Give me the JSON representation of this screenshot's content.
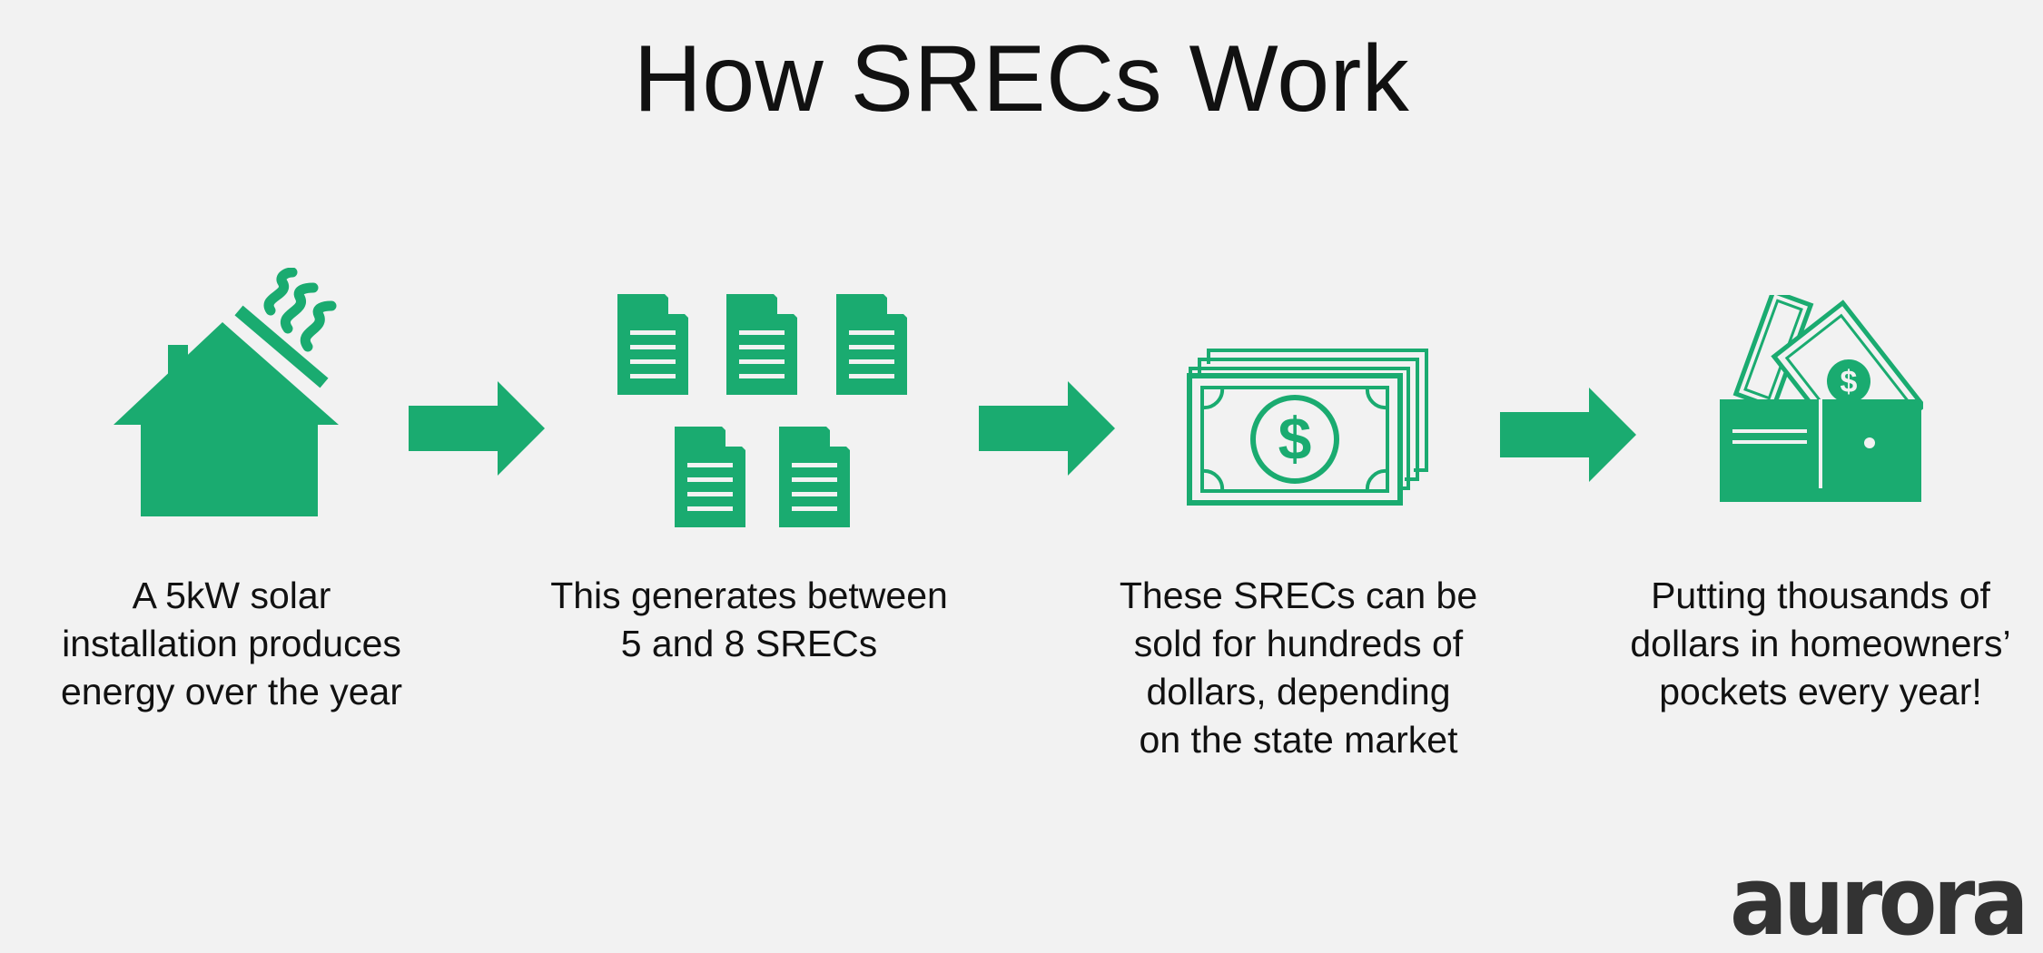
{
  "title": "How SRECs Work",
  "accent_color": "#1aab70",
  "logo_color": "#333333",
  "steps": [
    {
      "icon": "solar-house-icon",
      "lines": [
        "A 5kW solar",
        "installation produces",
        "energy over the year"
      ]
    },
    {
      "icon": "documents-icon",
      "lines": [
        "This generates between",
        "5 and 8 SRECs"
      ]
    },
    {
      "icon": "money-stack-icon",
      "lines": [
        "These SRECs can be",
        "sold for hundreds of",
        "dollars, depending",
        "on the state market"
      ]
    },
    {
      "icon": "wallet-icon",
      "lines": [
        "Putting thousands of",
        "dollars in homeowners’",
        "pockets every year!"
      ]
    }
  ],
  "arrows": [
    "arrow-right-icon",
    "arrow-right-icon",
    "arrow-right-icon"
  ],
  "logo": {
    "text": "aurora"
  }
}
